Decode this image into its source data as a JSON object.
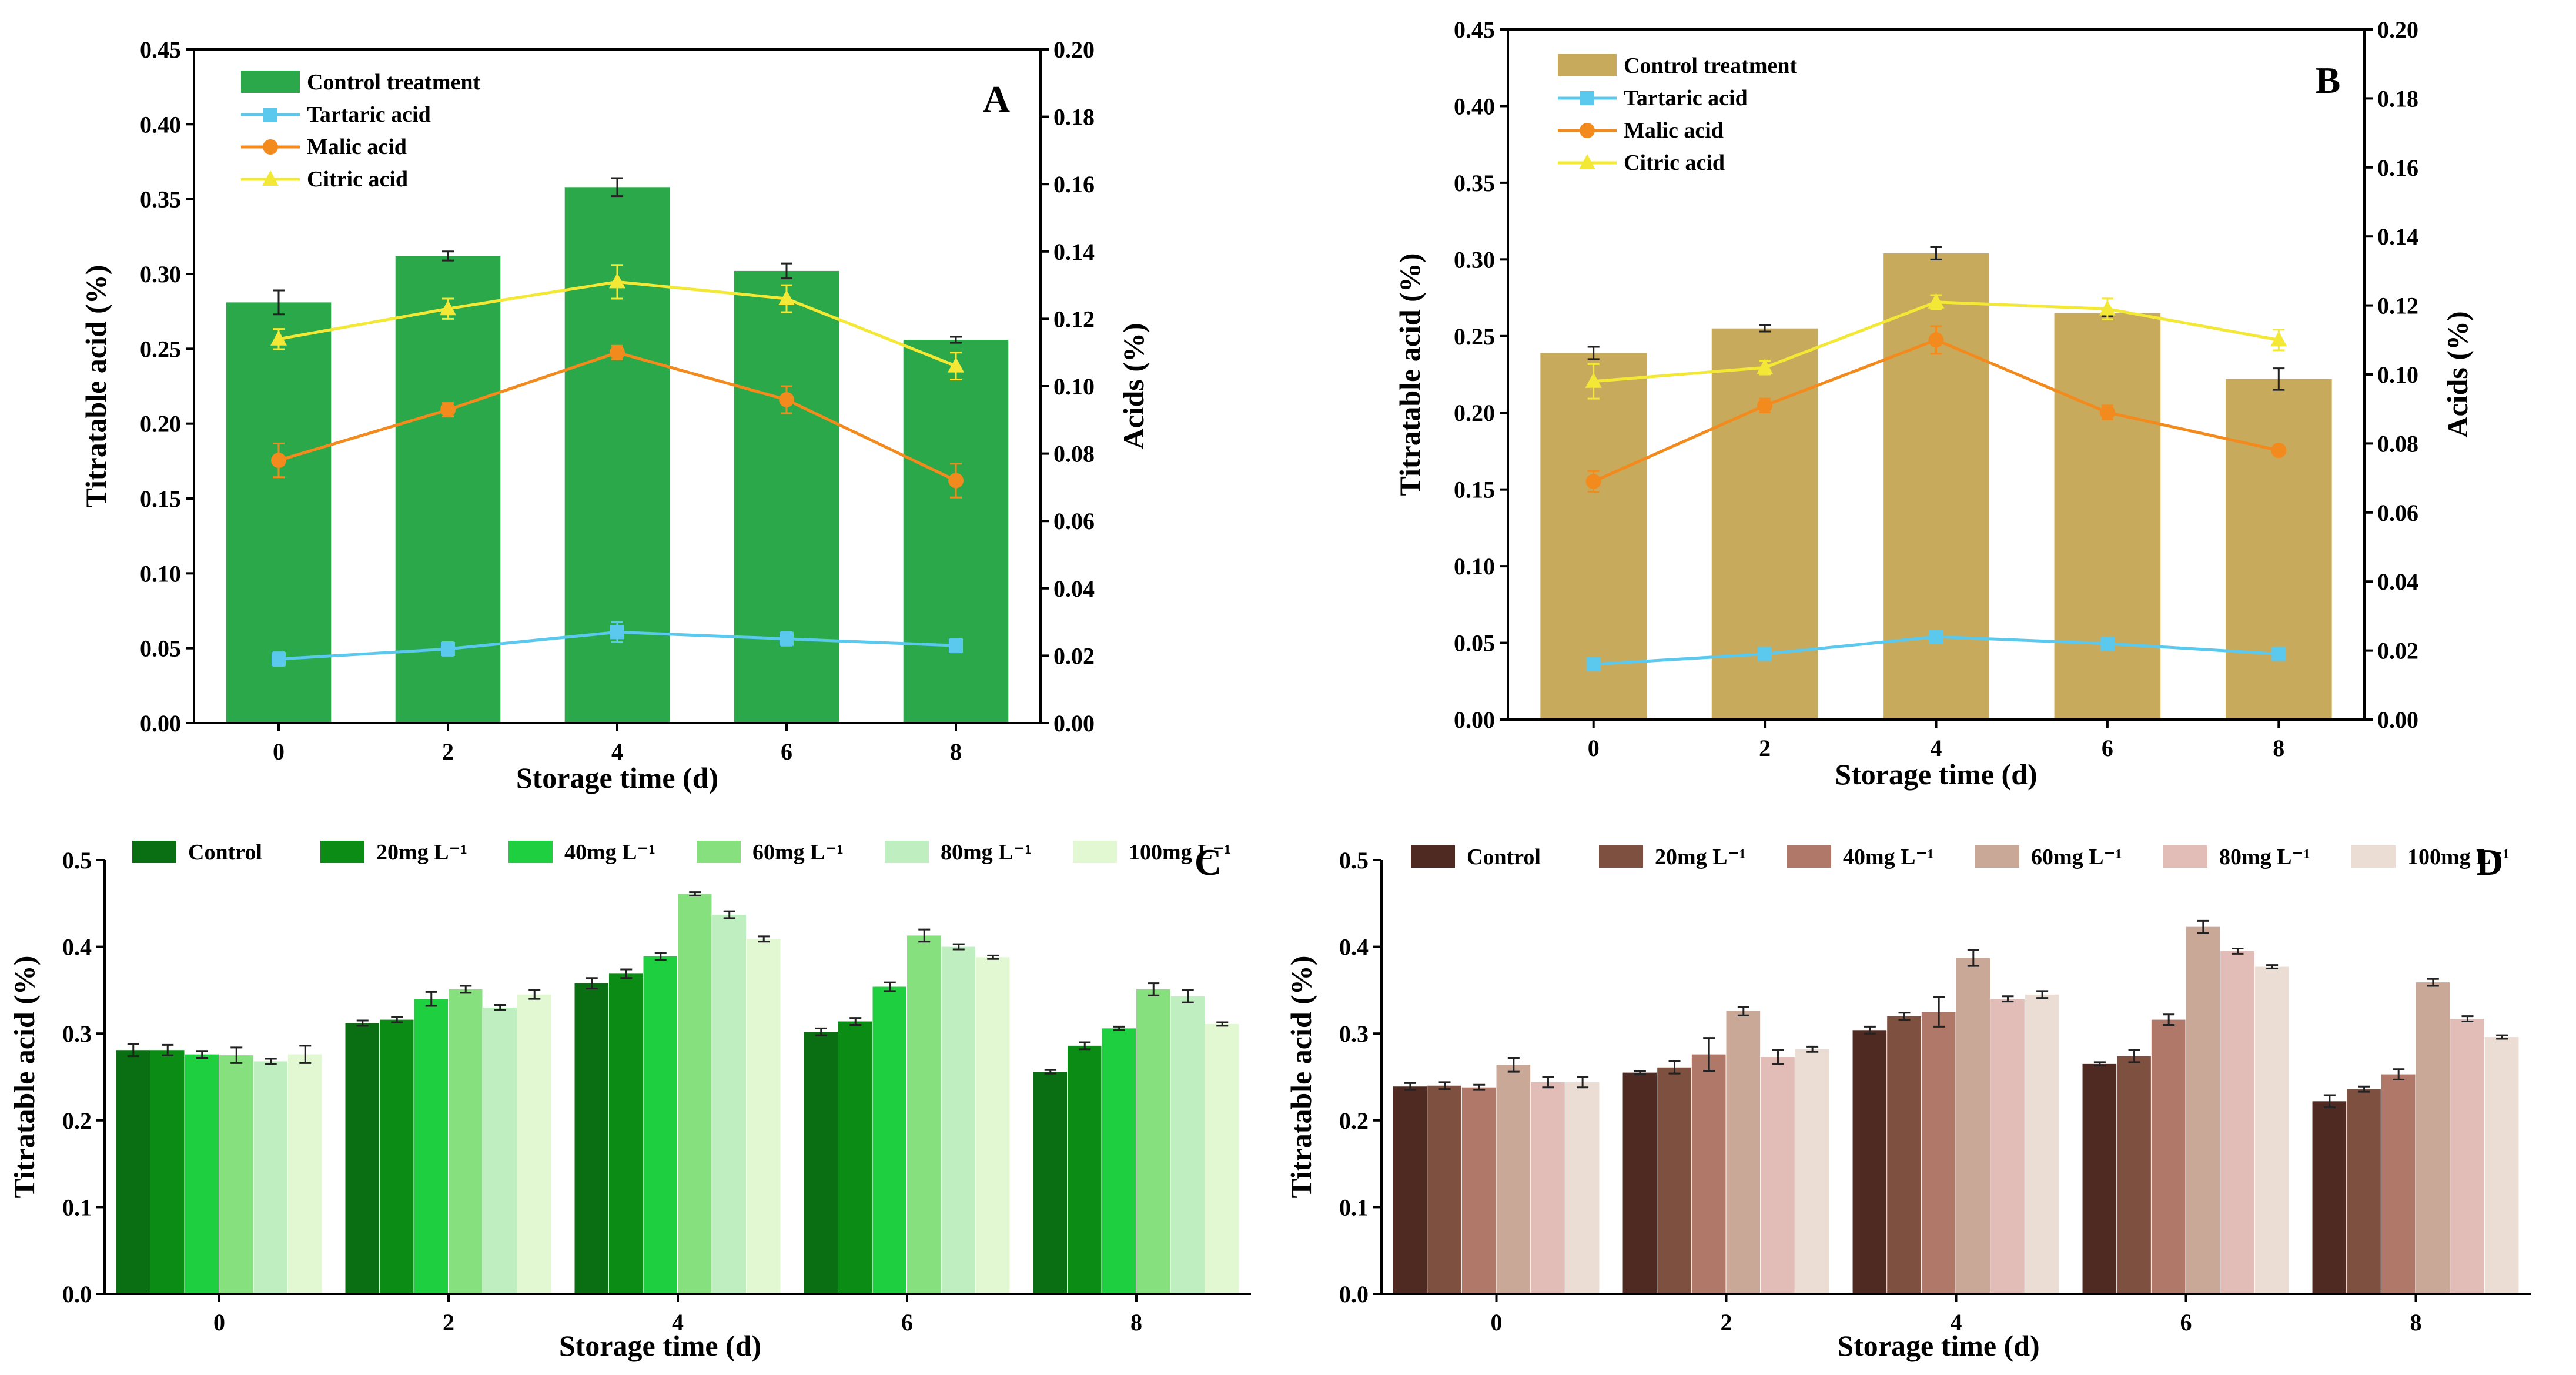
{
  "chart_data": [
    {
      "panel": "A",
      "type": "bar+line",
      "xlabel": "Storage time (d)",
      "ylabel": "Titratable acid (%)",
      "y2label": "Acids (%)",
      "ylim": [
        0,
        0.45
      ],
      "y2lim": [
        0,
        0.2
      ],
      "yticks": [
        "0.00",
        "0.05",
        "0.10",
        "0.15",
        "0.20",
        "0.25",
        "0.30",
        "0.35",
        "0.40",
        "0.45"
      ],
      "y2ticks": [
        "0.00",
        "0.02",
        "0.04",
        "0.06",
        "0.08",
        "0.10",
        "0.12",
        "0.14",
        "0.16",
        "0.18",
        "0.20"
      ],
      "categories": [
        "0",
        "2",
        "4",
        "6",
        "8"
      ],
      "bar_color": "#2ba84a",
      "bar": {
        "name": "Control treatment",
        "values": [
          0.281,
          0.312,
          0.358,
          0.302,
          0.256
        ],
        "errors": [
          0.008,
          0.003,
          0.006,
          0.005,
          0.002
        ]
      },
      "lines": [
        {
          "name": "Tartaric acid",
          "color": "#5bc8ee",
          "marker": "square",
          "values": [
            0.019,
            0.022,
            0.027,
            0.025,
            0.023
          ],
          "errors": [
            0.002,
            0.002,
            0.003,
            0.002,
            0.002
          ]
        },
        {
          "name": "Malic acid",
          "color": "#f28a1e",
          "marker": "circle",
          "values": [
            0.078,
            0.093,
            0.11,
            0.096,
            0.072
          ],
          "errors": [
            0.005,
            0.002,
            0.002,
            0.004,
            0.005
          ]
        },
        {
          "name": "Citric acid",
          "color": "#f2e835",
          "marker": "triangle",
          "values": [
            0.114,
            0.123,
            0.131,
            0.126,
            0.106
          ],
          "errors": [
            0.003,
            0.003,
            0.005,
            0.004,
            0.004
          ]
        }
      ],
      "legend_position": "top-left"
    },
    {
      "panel": "B",
      "type": "bar+line",
      "xlabel": "Storage time (d)",
      "ylabel": "Titratable acid (%)",
      "y2label": "Acids (%)",
      "ylim": [
        0,
        0.45
      ],
      "y2lim": [
        0,
        0.2
      ],
      "yticks": [
        "0.00",
        "0.05",
        "0.10",
        "0.15",
        "0.20",
        "0.25",
        "0.30",
        "0.35",
        "0.40",
        "0.45"
      ],
      "y2ticks": [
        "0.00",
        "0.02",
        "0.04",
        "0.06",
        "0.08",
        "0.10",
        "0.12",
        "0.14",
        "0.16",
        "0.18",
        "0.20"
      ],
      "categories": [
        "0",
        "2",
        "4",
        "6",
        "8"
      ],
      "bar_color": "#c8aa5c",
      "bar": {
        "name": "Control treatment",
        "values": [
          0.239,
          0.255,
          0.304,
          0.265,
          0.222
        ],
        "errors": [
          0.004,
          0.002,
          0.004,
          0.002,
          0.007
        ]
      },
      "lines": [
        {
          "name": "Tartaric acid",
          "color": "#5bc8ee",
          "marker": "square",
          "values": [
            0.016,
            0.019,
            0.024,
            0.022,
            0.019
          ],
          "errors": [
            0.001,
            0.001,
            0.001,
            0.001,
            0.001
          ]
        },
        {
          "name": "Malic acid",
          "color": "#f28a1e",
          "marker": "circle",
          "values": [
            0.069,
            0.091,
            0.11,
            0.089,
            0.078
          ],
          "errors": [
            0.003,
            0.002,
            0.004,
            0.002,
            0.001
          ]
        },
        {
          "name": "Citric acid",
          "color": "#f2e835",
          "marker": "triangle",
          "values": [
            0.098,
            0.102,
            0.121,
            0.119,
            0.11
          ],
          "errors": [
            0.005,
            0.002,
            0.002,
            0.003,
            0.003
          ]
        }
      ],
      "legend_position": "top-left"
    },
    {
      "panel": "C",
      "type": "bar",
      "xlabel": "Storage time (d)",
      "ylabel": "Titratable acid (%)",
      "ylim": [
        0,
        0.5
      ],
      "yticks": [
        "0.0",
        "0.1",
        "0.2",
        "0.3",
        "0.4",
        "0.5"
      ],
      "categories": [
        "0",
        "2",
        "4",
        "6",
        "8"
      ],
      "series": [
        {
          "name": "Control",
          "color": "#0a6e12",
          "values": [
            0.281,
            0.312,
            0.358,
            0.302,
            0.256
          ],
          "errors": [
            0.007,
            0.003,
            0.006,
            0.004,
            0.002
          ]
        },
        {
          "name": "20mg L⁻¹",
          "color": "#0b8c14",
          "values": [
            0.281,
            0.316,
            0.369,
            0.314,
            0.286
          ],
          "errors": [
            0.006,
            0.003,
            0.005,
            0.004,
            0.004
          ]
        },
        {
          "name": "40mg L⁻¹",
          "color": "#1ed040",
          "values": [
            0.276,
            0.34,
            0.389,
            0.354,
            0.306
          ],
          "errors": [
            0.004,
            0.008,
            0.004,
            0.005,
            0.002
          ]
        },
        {
          "name": "60mg L⁻¹",
          "color": "#86e07e",
          "values": [
            0.275,
            0.351,
            0.461,
            0.413,
            0.351
          ],
          "errors": [
            0.009,
            0.004,
            0.002,
            0.007,
            0.007
          ]
        },
        {
          "name": "80mg L⁻¹",
          "color": "#bfeec0",
          "values": [
            0.268,
            0.33,
            0.437,
            0.4,
            0.343
          ],
          "errors": [
            0.003,
            0.003,
            0.004,
            0.003,
            0.007
          ]
        },
        {
          "name": "100mg L⁻¹",
          "color": "#e2f8d3",
          "values": [
            0.276,
            0.345,
            0.409,
            0.388,
            0.311
          ],
          "errors": [
            0.01,
            0.005,
            0.003,
            0.002,
            0.002
          ]
        }
      ],
      "legend_position": "top"
    },
    {
      "panel": "D",
      "type": "bar",
      "xlabel": "Storage time (d)",
      "ylabel": "Titratable acid (%)",
      "ylim": [
        0,
        0.5
      ],
      "yticks": [
        "0.0",
        "0.1",
        "0.2",
        "0.3",
        "0.4",
        "0.5"
      ],
      "categories": [
        "0",
        "2",
        "4",
        "6",
        "8"
      ],
      "series": [
        {
          "name": "Control",
          "color": "#4f2a22",
          "values": [
            0.239,
            0.255,
            0.304,
            0.265,
            0.222
          ],
          "errors": [
            0.004,
            0.002,
            0.004,
            0.002,
            0.007
          ]
        },
        {
          "name": "20mg L⁻¹",
          "color": "#7d5040",
          "values": [
            0.24,
            0.261,
            0.32,
            0.274,
            0.236
          ],
          "errors": [
            0.004,
            0.007,
            0.004,
            0.007,
            0.003
          ]
        },
        {
          "name": "40mg L⁻¹",
          "color": "#b07868",
          "values": [
            0.238,
            0.276,
            0.325,
            0.316,
            0.253
          ],
          "errors": [
            0.003,
            0.019,
            0.017,
            0.006,
            0.006
          ]
        },
        {
          "name": "60mg L⁻¹",
          "color": "#c9a898",
          "values": [
            0.264,
            0.326,
            0.387,
            0.423,
            0.359
          ],
          "errors": [
            0.008,
            0.005,
            0.009,
            0.007,
            0.004
          ]
        },
        {
          "name": "80mg L⁻¹",
          "color": "#e2bcb6",
          "values": [
            0.244,
            0.273,
            0.34,
            0.395,
            0.317
          ],
          "errors": [
            0.006,
            0.008,
            0.003,
            0.003,
            0.003
          ]
        },
        {
          "name": "100mg L⁻¹",
          "color": "#ebddd4",
          "values": [
            0.244,
            0.282,
            0.345,
            0.377,
            0.296
          ],
          "errors": [
            0.006,
            0.003,
            0.004,
            0.002,
            0.002
          ]
        }
      ],
      "legend_position": "top"
    }
  ]
}
